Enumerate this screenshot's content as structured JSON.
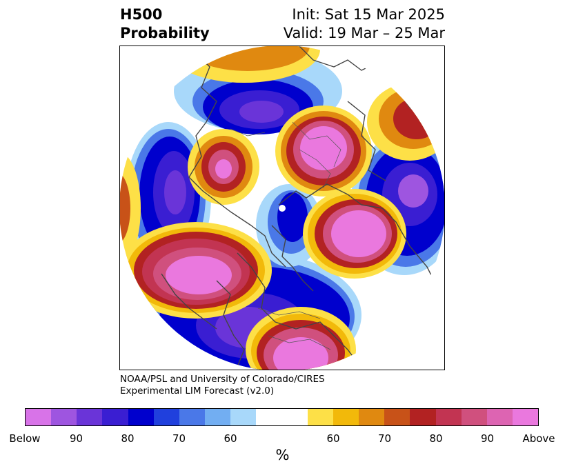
{
  "title": {
    "left_line1": "H500",
    "left_line2": "Probability",
    "right_line1": "Init: Sat 15 Mar 2025",
    "right_line2": "Valid: 19 Mar – 25 Mar"
  },
  "credit": {
    "line1": "NOAA/PSL and University of Colorado/CIRES",
    "line2": "Experimental LIM Forecast (v2.0)"
  },
  "colorbar": {
    "colors": [
      "#d873e8",
      "#9e55e0",
      "#6a34d8",
      "#3a1ed2",
      "#0000cd",
      "#2040dd",
      "#4a78e8",
      "#72aef2",
      "#a8d8fa",
      "#ffffff",
      "#ffffff",
      "#fde047",
      "#f2b90a",
      "#e08910",
      "#c85218",
      "#b22222",
      "#c23452",
      "#d0507e",
      "#dd64b2",
      "#ea78de"
    ],
    "ticks": [
      {
        "label": "Below",
        "frac": 0.0
      },
      {
        "label": "90",
        "frac": 0.1
      },
      {
        "label": "80",
        "frac": 0.2
      },
      {
        "label": "70",
        "frac": 0.3
      },
      {
        "label": "60",
        "frac": 0.4
      },
      {
        "label": "60",
        "frac": 0.6
      },
      {
        "label": "70",
        "frac": 0.7
      },
      {
        "label": "80",
        "frac": 0.8
      },
      {
        "label": "90",
        "frac": 0.9
      },
      {
        "label": "Above",
        "frac": 1.0
      }
    ],
    "unit": "%"
  },
  "map": {
    "projection": "polar stereographic (north pole)",
    "below_color": "#0000cd",
    "above_color": "#ea78de"
  }
}
